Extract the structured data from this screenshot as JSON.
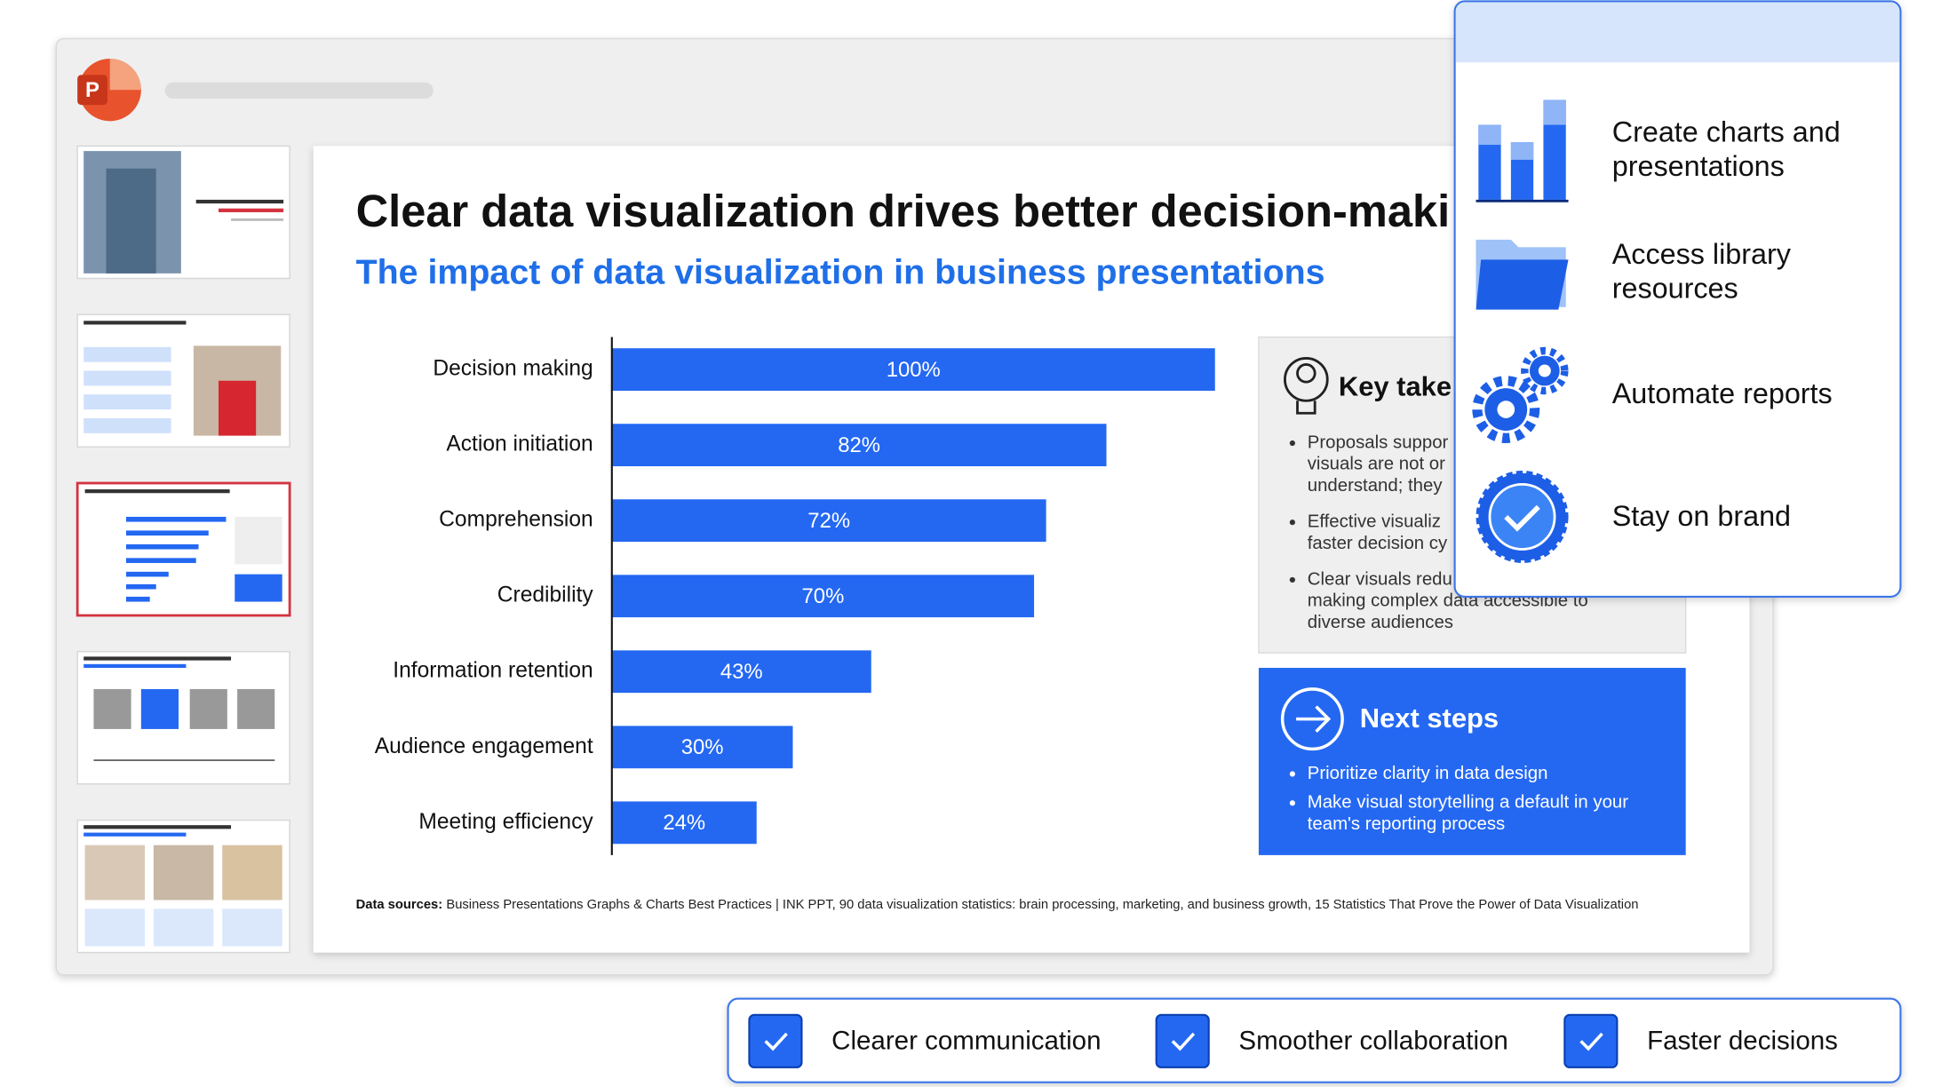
{
  "slide": {
    "title": "Clear data visualization drives better decision-maki",
    "subtitle": "The impact of data visualization in business presentations",
    "chart": {
      "type": "bar",
      "categories": [
        "Decision making",
        "Action initiation",
        "Comprehension",
        "Credibility",
        "Information retention",
        "Audience engagement",
        "Meeting efficiency"
      ],
      "values": [
        100,
        82,
        72,
        70,
        43,
        30,
        24
      ],
      "value_labels": [
        "100%",
        "82%",
        "72%",
        "70%",
        "43%",
        "30%",
        "24%"
      ],
      "color": "#2468f2"
    },
    "key_takeaways": {
      "heading": "Key take",
      "bullets": [
        [
          "Proposals suppor",
          "visuals are not or",
          "understand; they"
        ],
        [
          "Effective visualiz",
          "faster decision cy"
        ],
        [
          "Clear visuals redu",
          "making complex data accessible to",
          "diverse audiences"
        ]
      ]
    },
    "next_steps": {
      "heading": "Next steps",
      "bullets": [
        [
          "Prioritize clarity in data design"
        ],
        [
          "Make visual storytelling a default in your",
          "team's reporting process"
        ]
      ]
    },
    "sources": {
      "label": "Data sources:",
      "text": "Business Presentations Graphs & Charts Best Practices | INK PPT, 90 data visualization statistics: brain processing, marketing, and business growth, 15 Statistics That Prove the Power of Data Visualization"
    }
  },
  "features": [
    [
      "Create charts and",
      "presentations"
    ],
    [
      "Access library",
      "resources"
    ],
    [
      "Automate reports"
    ],
    [
      "Stay on brand"
    ]
  ],
  "benefits": [
    "Clearer communication",
    "Smoother collaboration",
    "Faster decisions"
  ]
}
